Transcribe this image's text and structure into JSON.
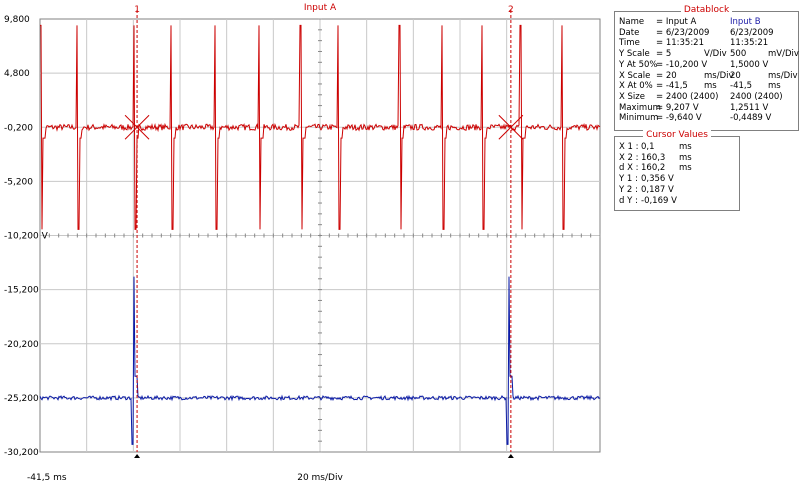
{
  "header": {
    "title": "Input A"
  },
  "footer": {
    "left": "-41,5 ms",
    "center": "20 ms/Div"
  },
  "cursors": {
    "labels": [
      "1",
      "2"
    ]
  },
  "colors": {
    "channel_a": "#cc0000",
    "channel_b": "#0a1aa6",
    "cursor": "#cc0000",
    "grid": "#c8c8c8",
    "frame": "#808080"
  },
  "chart_data": {
    "type": "line",
    "title": "Input A",
    "xlabel": "20 ms/Div",
    "x_unit": "ms",
    "xlim": [
      -41.5,
      198.5
    ],
    "ylim": [
      -30.2,
      9.8
    ],
    "y_ticks": [
      9.8,
      4.8,
      -0.2,
      -5.2,
      -10.2,
      -15.2,
      -20.2,
      -25.2,
      -30.2
    ],
    "y_tick_labels": [
      "9,800",
      "4,800",
      "-0,200",
      "-5,200",
      "-10,200 V",
      "-15,200",
      "-20,200",
      "-25,200",
      "-30,200"
    ],
    "grid": true,
    "cursor_x_ms": [
      0.1,
      160.3
    ],
    "series": [
      {
        "name": "Input A",
        "color": "#cc0000",
        "baseline_v": -0.2,
        "pulse_times_ms": [
          -41.3,
          -25.6,
          -1.2,
          14.7,
          33.5,
          52.3,
          70.2,
          86.2,
          112.5,
          130.8,
          147.9,
          164.5,
          182.3
        ],
        "maximum_v": 9.207,
        "minimum_v": -9.64
      },
      {
        "name": "Input B",
        "color": "#0a1aa6",
        "baseline_v": -25.2,
        "pulse_times_ms": [
          -1.2,
          159.5
        ],
        "pulse_peak_v": -14.0,
        "pulse_trough_v": -29.5
      }
    ]
  },
  "datablock": {
    "title": "Datablock",
    "rows": [
      {
        "label": "Name",
        "a": "= Input A",
        "b": "Input B"
      },
      {
        "label": "Date",
        "a": "= 6/23/2009",
        "b": "6/23/2009"
      },
      {
        "label": "Time",
        "a": "= 11:35:21",
        "b": "11:35:21"
      },
      {
        "label": "Y Scale",
        "a": "= 5",
        "a_unit": "V/Div",
        "b": "500",
        "b_unit": "mV/Div"
      },
      {
        "label": "Y At 50%",
        "a": "= -10,200 V",
        "b": "1,5000 V"
      },
      {
        "label": "X Scale",
        "a": "= 20",
        "a_unit": "ms/Div",
        "b": "20",
        "b_unit": "ms/Div"
      },
      {
        "label": "X At 0%",
        "a": "= -41,5",
        "a_unit": "ms",
        "b": "-41,5",
        "b_unit": "ms"
      },
      {
        "label": "X Size",
        "a": "= 2400 (2400)",
        "b": "2400 (2400)"
      },
      {
        "label": "Maximum",
        "a": "= 9,207 V",
        "b": "1,2511 V"
      },
      {
        "label": "Minimum",
        "a": "= -9,640 V",
        "b": "-0,4489 V"
      }
    ]
  },
  "cursor_values": {
    "title": "Cursor Values",
    "rows": [
      {
        "label": "X 1 :",
        "value": "0,1",
        "unit": "ms"
      },
      {
        "label": "X 2 :",
        "value": "160,3",
        "unit": "ms"
      },
      {
        "label": "d X :",
        "value": "160,2",
        "unit": "ms"
      },
      {
        "label": "Y 1 :",
        "value": "0,356 V",
        "unit": ""
      },
      {
        "label": "Y 2 :",
        "value": "0,187 V",
        "unit": ""
      },
      {
        "label": "d Y :",
        "value": "-0,169 V",
        "unit": ""
      }
    ]
  }
}
